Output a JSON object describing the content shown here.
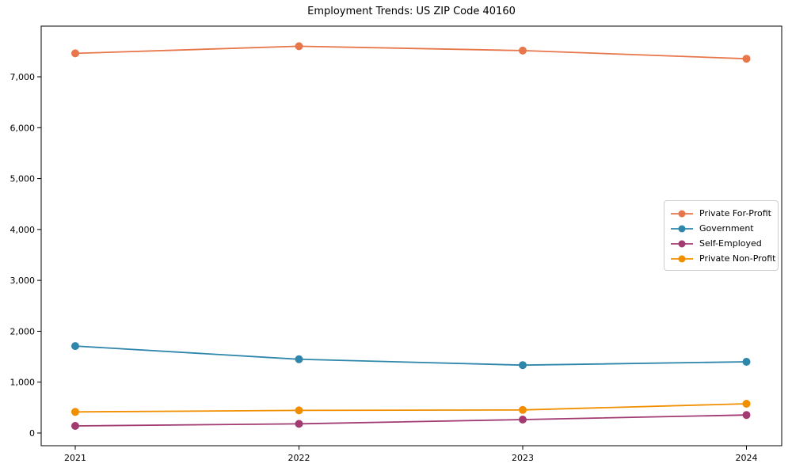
{
  "title": "Employment Trends: US ZIP Code 40160",
  "chart_data": {
    "type": "line",
    "x": [
      2021,
      2022,
      2023,
      2024
    ],
    "x_tick_labels": [
      "2021",
      "2022",
      "2023",
      "2024"
    ],
    "series": [
      {
        "name": "Private For-Profit",
        "color": "#E8764B",
        "values": [
          7460,
          7600,
          7515,
          7355
        ]
      },
      {
        "name": "Government",
        "color": "#2E86AB",
        "values": [
          1710,
          1450,
          1335,
          1400
        ]
      },
      {
        "name": "Self-Employed",
        "color": "#A23B72",
        "values": [
          140,
          180,
          265,
          355
        ]
      },
      {
        "name": "Private Non-Profit",
        "color": "#F18F01",
        "values": [
          415,
          445,
          455,
          575
        ]
      }
    ],
    "title": "Employment Trends: US ZIP Code 40160",
    "xlabel": "",
    "ylabel": "",
    "ylim": [
      -250,
      8000
    ],
    "yticks": [
      0,
      1000,
      2000,
      3000,
      4000,
      5000,
      6000,
      7000
    ],
    "ytick_labels": [
      "0",
      "1,000",
      "2,000",
      "3,000",
      "4,000",
      "5,000",
      "6,000",
      "7,000"
    ],
    "grid": false,
    "legend_position": "center right",
    "marker": "circle",
    "axes_color": "#000000"
  }
}
